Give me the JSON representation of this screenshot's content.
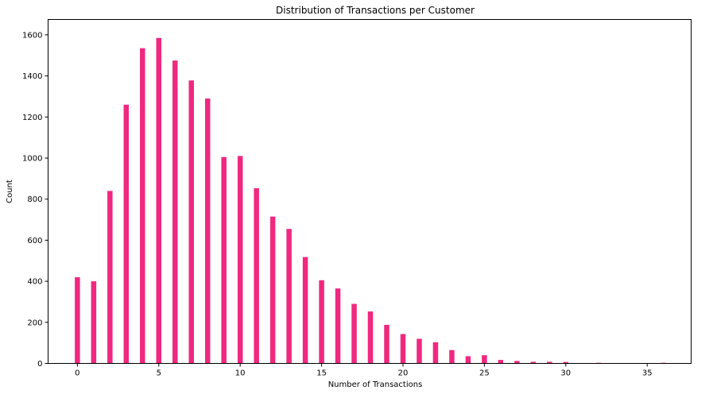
{
  "chart_data": {
    "type": "bar",
    "title": "Distribution of Transactions per Customer",
    "xlabel": "Number of Transactions",
    "ylabel": "Count",
    "bar_color": "#f0287f",
    "xlim": [
      -1.8,
      37.7
    ],
    "ylim": [
      0,
      1675
    ],
    "xticks": [
      0,
      5,
      10,
      15,
      20,
      25,
      30,
      35
    ],
    "yticks": [
      0,
      200,
      400,
      600,
      800,
      1000,
      1200,
      1400,
      1600
    ],
    "x": [
      0,
      1,
      2,
      3,
      4,
      5,
      6,
      7,
      8,
      9,
      10,
      11,
      12,
      13,
      14,
      15,
      16,
      17,
      18,
      19,
      20,
      21,
      22,
      23,
      24,
      25,
      26,
      27,
      28,
      29,
      30,
      32,
      36
    ],
    "values": [
      420,
      400,
      840,
      1260,
      1535,
      1585,
      1475,
      1378,
      1290,
      1005,
      1010,
      853,
      715,
      655,
      518,
      405,
      365,
      290,
      253,
      188,
      143,
      120,
      103,
      65,
      35,
      40,
      17,
      12,
      8,
      8,
      7,
      3,
      3
    ]
  }
}
